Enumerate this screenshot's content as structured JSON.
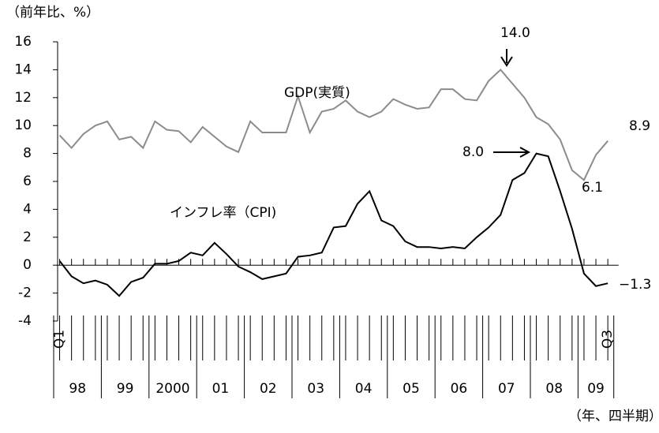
{
  "chart_data": {
    "type": "line",
    "y_label": "（前年比、%）",
    "x_label": "（年、四半期）",
    "categories": [
      "Q1",
      null,
      null,
      null,
      null,
      null,
      null,
      null,
      null,
      null,
      null,
      null,
      null,
      null,
      null,
      null,
      null,
      null,
      null,
      null,
      null,
      null,
      null,
      null,
      null,
      null,
      null,
      null,
      null,
      null,
      null,
      null,
      null,
      null,
      null,
      null,
      null,
      null,
      null,
      null,
      null,
      null,
      null,
      null,
      null,
      null,
      "Q3"
    ],
    "year_labels": [
      "98",
      "99",
      "2000",
      "01",
      "02",
      "03",
      "04",
      "05",
      "06",
      "07",
      "08",
      "09"
    ],
    "series": [
      {
        "name": "GDP(実質)",
        "color": "#8c8c8c",
        "values": [
          9.3,
          8.4,
          9.4,
          10.0,
          10.3,
          9.0,
          9.2,
          8.4,
          10.3,
          9.7,
          9.6,
          8.8,
          9.9,
          9.2,
          8.5,
          8.1,
          10.3,
          9.5,
          9.5,
          9.5,
          12.1,
          9.5,
          11.0,
          11.2,
          11.8,
          11.0,
          10.6,
          11.0,
          11.9,
          11.5,
          11.2,
          11.3,
          12.6,
          12.6,
          11.9,
          11.8,
          13.2,
          14.0,
          13.0,
          12.0,
          10.6,
          10.1,
          9.0,
          6.8,
          6.1,
          7.9,
          8.9
        ]
      },
      {
        "name": "インフレ率（CPI)",
        "color": "#000000",
        "values": [
          0.3,
          -0.8,
          -1.3,
          -1.1,
          -1.4,
          -2.2,
          -1.2,
          -0.9,
          0.1,
          0.1,
          0.3,
          0.9,
          0.7,
          1.6,
          0.8,
          -0.1,
          -0.5,
          -1.0,
          -0.8,
          -0.6,
          0.6,
          0.7,
          0.9,
          2.7,
          2.8,
          4.4,
          5.3,
          3.2,
          2.8,
          1.7,
          1.3,
          1.3,
          1.2,
          1.3,
          1.2,
          2.0,
          2.7,
          3.6,
          6.1,
          6.6,
          8.0,
          7.8,
          5.3,
          2.6,
          -0.6,
          -1.5,
          -1.3
        ]
      }
    ],
    "annotations": [
      "14.0",
      "8.0",
      "6.1",
      "8.9",
      "−1.3"
    ],
    "ylim": [
      -4,
      16
    ],
    "yticks": [
      -4,
      -2,
      0,
      2,
      4,
      6,
      8,
      10,
      12,
      14,
      16
    ],
    "grid": false
  }
}
